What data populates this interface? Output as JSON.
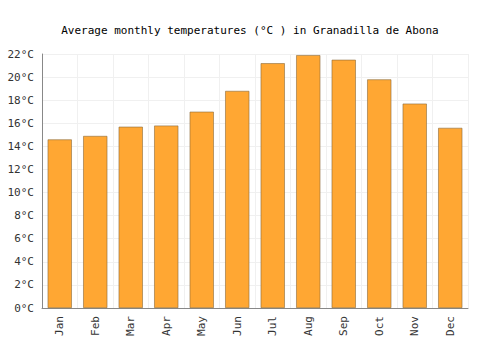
{
  "chart_data": {
    "type": "bar",
    "title": "Average monthly temperatures (°C ) in Granadilla de Abona",
    "categories": [
      "Jan",
      "Feb",
      "Mar",
      "Apr",
      "May",
      "Jun",
      "Jul",
      "Aug",
      "Sep",
      "Oct",
      "Nov",
      "Dec"
    ],
    "values": [
      14.6,
      14.9,
      15.7,
      15.8,
      17.0,
      18.8,
      21.2,
      21.9,
      21.5,
      19.8,
      17.7,
      15.6
    ],
    "color": "#ffa733",
    "ylim": [
      0,
      22
    ],
    "yticks": [
      {
        "value": 0,
        "label": "0°C"
      },
      {
        "value": 2,
        "label": "2°C"
      },
      {
        "value": 4,
        "label": "4°C"
      },
      {
        "value": 6,
        "label": "6°C"
      },
      {
        "value": 8,
        "label": "8°C"
      },
      {
        "value": 10,
        "label": "10°C"
      },
      {
        "value": 12,
        "label": "12°C"
      },
      {
        "value": 14,
        "label": "14°C"
      },
      {
        "value": 16,
        "label": "16°C"
      },
      {
        "value": 18,
        "label": "18°C"
      },
      {
        "value": 20,
        "label": "20°C"
      },
      {
        "value": 22,
        "label": "22°C"
      }
    ],
    "grid": true
  }
}
